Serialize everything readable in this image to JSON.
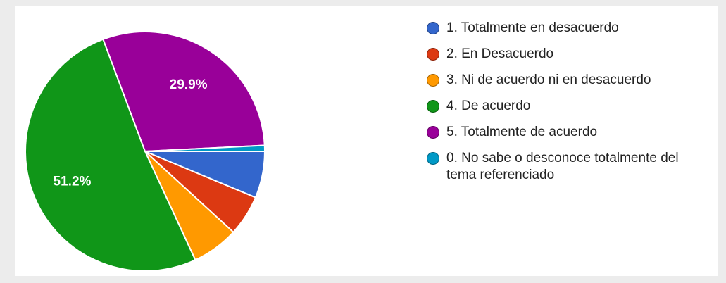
{
  "chart_data": {
    "type": "pie",
    "categories": [
      "1. Totalmente en desacuerdo",
      "2. En Desacuerdo",
      "3. Ni de acuerdo ni en desacuerdo",
      "4. De acuerdo",
      "5. Totalmente de acuerdo",
      "0. No sabe o desconoce totalmente del tema referenciado"
    ],
    "values": [
      6.3,
      5.5,
      6.3,
      51.2,
      29.9,
      0.8
    ],
    "value_labels": [
      null,
      null,
      null,
      "51.2%",
      "29.9%",
      null
    ],
    "colors": [
      "#3366cc",
      "#dc3912",
      "#ff9900",
      "#109618",
      "#990099",
      "#0099c6"
    ],
    "legend": "right"
  }
}
